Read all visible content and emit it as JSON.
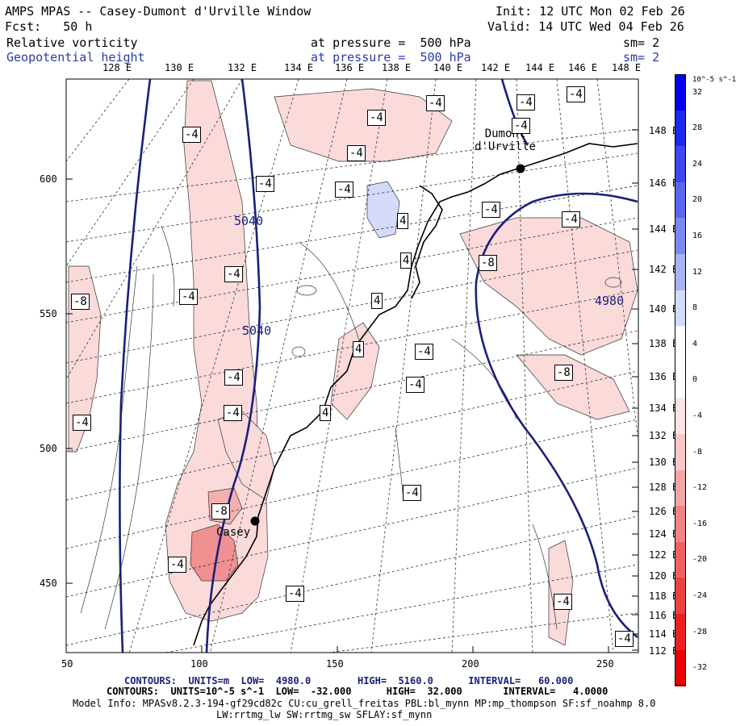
{
  "header": {
    "title": "AMPS MPAS -- Casey-Dumont d'Urville Window",
    "forecast": "Fcst:   50 h",
    "init": "Init: 12 UTC Mon 02 Feb 26",
    "valid": "Valid: 14 UTC Wed 04 Feb 26",
    "field1_name": "Relative vorticity",
    "field1_pressure": "at pressure =  500 hPa",
    "field1_sm": "sm= 2",
    "field2_name": "Geopotential height",
    "field2_pressure": "at pressure =  500 hPa",
    "field2_sm": "sm= 2"
  },
  "lon_labels": [
    "128 E",
    "130 E",
    "132 E",
    "134 E",
    "136 E",
    "138 E",
    "140 E",
    "142 E",
    "144 E",
    "146 E",
    "148 E"
  ],
  "lat_labels": [
    "148 E",
    "146 E",
    "144 E",
    "142 E",
    "140 E",
    "138 E",
    "136 E",
    "134 E",
    "132 E",
    "130 E",
    "128 E",
    "126 E",
    "124 E",
    "122 E",
    "120 E",
    "118 E",
    "116 E",
    "114 E",
    "112 E"
  ],
  "x_ticks": [
    "50",
    "100",
    "150",
    "200",
    "250"
  ],
  "y_ticks": [
    "600",
    "550",
    "500",
    "450"
  ],
  "map_labels": {
    "station_dumont": "Dumont d'Urville",
    "station_casey": "Casey",
    "contour_5040_a": "5040",
    "contour_5040_b": "5040",
    "contour_4980": "4980"
  },
  "vorticity_labels": [
    "-4",
    "-4",
    "-4",
    "-4",
    "-4",
    "-4",
    "-4",
    "-4",
    "-4",
    "-4",
    "-4",
    "-4",
    "-4",
    "-8",
    "-8",
    "-8",
    "-4",
    "-4",
    "-4",
    "-4",
    "-4",
    "-4",
    "4",
    "4",
    "4",
    "4",
    "-8",
    "-4",
    "4",
    "-4",
    "-4",
    "-4"
  ],
  "colorbar": {
    "unit": "10^-5 s^-1",
    "labels": [
      "32",
      "28",
      "24",
      "20",
      "16",
      "12",
      "8",
      "4",
      "0",
      "-4",
      "-8",
      "-12",
      "-16",
      "-20",
      "-24",
      "-28",
      "-32"
    ],
    "colors": [
      "#0000ee",
      "#1e28f0",
      "#3c48f0",
      "#5a66f0",
      "#7c88f2",
      "#a8b2f6",
      "#d4daf9",
      "#ffffff",
      "#ffffff",
      "#fde4e4",
      "#f9c8c8",
      "#f5a6a6",
      "#f38484",
      "#f06262",
      "#ee4040",
      "#ec2020",
      "#ea0000"
    ]
  },
  "footer": {
    "line1": "CONTOURS:  UNITS=m  LOW=  4980.0        HIGH=  5160.0      INTERVAL=   60.000",
    "line2": "CONTOURS:  UNITS=10^-5 s^-1  LOW=  -32.000      HIGH=  32.000       INTERVAL=   4.0000",
    "line3": "Model Info: MPASv8.2.3-194-gf29cd82c CU:cu_grell_freitas PBL:bl_mynn MP:mp_thompson SF:sf_noahmp 8.0",
    "line4": "LW:rrtmg_lw SW:rrtmg_sw SFLAY:sf_mynn"
  }
}
